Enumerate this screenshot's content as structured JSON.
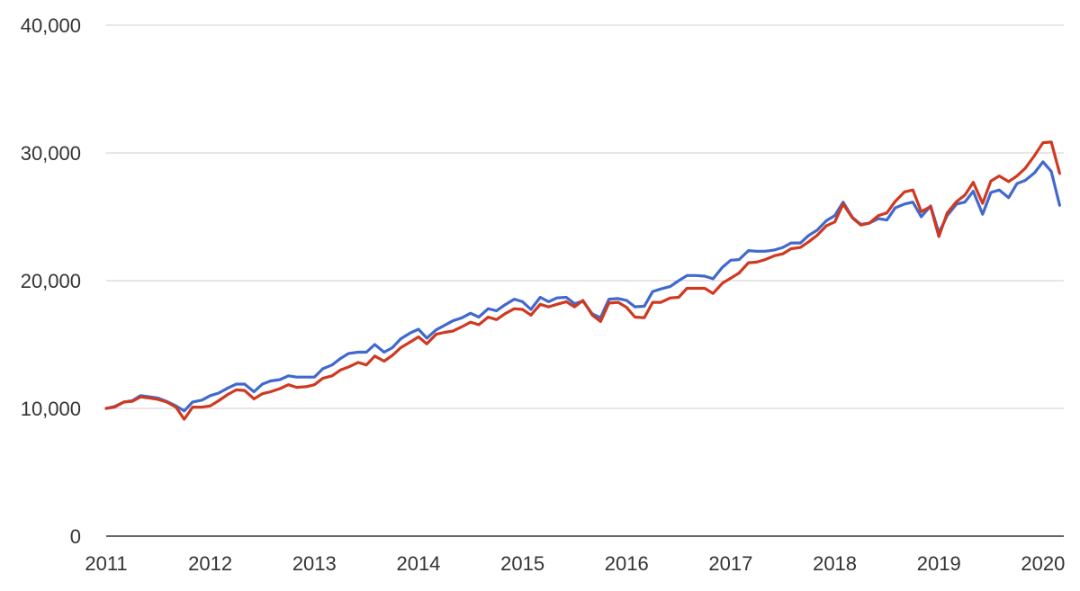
{
  "chart_data": {
    "type": "line",
    "title": "",
    "xlabel": "",
    "ylabel": "",
    "xlim": [
      2011.0,
      2020.2
    ],
    "ylim": [
      0,
      40000
    ],
    "grid": true,
    "legend": "none",
    "x_ticks": [
      {
        "value": 2011,
        "label": "2011"
      },
      {
        "value": 2012,
        "label": "2012"
      },
      {
        "value": 2013,
        "label": "2013"
      },
      {
        "value": 2014,
        "label": "2014"
      },
      {
        "value": 2015,
        "label": "2015"
      },
      {
        "value": 2016,
        "label": "2016"
      },
      {
        "value": 2017,
        "label": "2017"
      },
      {
        "value": 2018,
        "label": "2018"
      },
      {
        "value": 2019,
        "label": "2019"
      },
      {
        "value": 2020,
        "label": "2020"
      }
    ],
    "y_ticks": [
      {
        "value": 0,
        "label": "0"
      },
      {
        "value": 10000,
        "label": "10,000"
      },
      {
        "value": 20000,
        "label": "20,000"
      },
      {
        "value": 30000,
        "label": "30,000"
      },
      {
        "value": 40000,
        "label": "40,000"
      }
    ],
    "series": [
      {
        "color": "#4169cd",
        "points": [
          [
            2011.0,
            10000
          ],
          [
            2011.08,
            10150
          ],
          [
            2011.17,
            10500
          ],
          [
            2011.25,
            10600
          ],
          [
            2011.33,
            11000
          ],
          [
            2011.42,
            10900
          ],
          [
            2011.5,
            10800
          ],
          [
            2011.58,
            10550
          ],
          [
            2011.67,
            10200
          ],
          [
            2011.75,
            9800
          ],
          [
            2011.83,
            10500
          ],
          [
            2011.92,
            10650
          ],
          [
            2012.0,
            11000
          ],
          [
            2012.08,
            11200
          ],
          [
            2012.17,
            11600
          ],
          [
            2012.25,
            11900
          ],
          [
            2012.33,
            11900
          ],
          [
            2012.42,
            11300
          ],
          [
            2012.5,
            11900
          ],
          [
            2012.58,
            12150
          ],
          [
            2012.67,
            12250
          ],
          [
            2012.75,
            12550
          ],
          [
            2012.83,
            12450
          ],
          [
            2012.92,
            12450
          ],
          [
            2013.0,
            12450
          ],
          [
            2013.08,
            13100
          ],
          [
            2013.17,
            13400
          ],
          [
            2013.25,
            13900
          ],
          [
            2013.33,
            14300
          ],
          [
            2013.42,
            14400
          ],
          [
            2013.5,
            14400
          ],
          [
            2013.58,
            15000
          ],
          [
            2013.67,
            14400
          ],
          [
            2013.75,
            14750
          ],
          [
            2013.83,
            15450
          ],
          [
            2013.92,
            15900
          ],
          [
            2014.0,
            16200
          ],
          [
            2014.08,
            15500
          ],
          [
            2014.17,
            16150
          ],
          [
            2014.25,
            16500
          ],
          [
            2014.33,
            16850
          ],
          [
            2014.42,
            17100
          ],
          [
            2014.5,
            17450
          ],
          [
            2014.58,
            17150
          ],
          [
            2014.67,
            17800
          ],
          [
            2014.75,
            17650
          ],
          [
            2014.83,
            18100
          ],
          [
            2014.92,
            18550
          ],
          [
            2015.0,
            18350
          ],
          [
            2015.08,
            17750
          ],
          [
            2015.17,
            18700
          ],
          [
            2015.25,
            18350
          ],
          [
            2015.33,
            18650
          ],
          [
            2015.42,
            18700
          ],
          [
            2015.5,
            18200
          ],
          [
            2015.58,
            18400
          ],
          [
            2015.67,
            17400
          ],
          [
            2015.75,
            17100
          ],
          [
            2015.83,
            18550
          ],
          [
            2015.92,
            18600
          ],
          [
            2016.0,
            18450
          ],
          [
            2016.08,
            17950
          ],
          [
            2016.17,
            18000
          ],
          [
            2016.25,
            19150
          ],
          [
            2016.33,
            19350
          ],
          [
            2016.42,
            19550
          ],
          [
            2016.5,
            20000
          ],
          [
            2016.58,
            20400
          ],
          [
            2016.67,
            20400
          ],
          [
            2016.75,
            20350
          ],
          [
            2016.83,
            20150
          ],
          [
            2016.92,
            21050
          ],
          [
            2017.0,
            21600
          ],
          [
            2017.08,
            21650
          ],
          [
            2017.17,
            22350
          ],
          [
            2017.25,
            22300
          ],
          [
            2017.33,
            22300
          ],
          [
            2017.42,
            22400
          ],
          [
            2017.5,
            22600
          ],
          [
            2017.58,
            22950
          ],
          [
            2017.67,
            22950
          ],
          [
            2017.75,
            23550
          ],
          [
            2017.83,
            23950
          ],
          [
            2017.92,
            24700
          ],
          [
            2018.0,
            25100
          ],
          [
            2018.08,
            26150
          ],
          [
            2018.17,
            24950
          ],
          [
            2018.25,
            24400
          ],
          [
            2018.33,
            24500
          ],
          [
            2018.42,
            24850
          ],
          [
            2018.5,
            24750
          ],
          [
            2018.58,
            25700
          ],
          [
            2018.67,
            26000
          ],
          [
            2018.75,
            26150
          ],
          [
            2018.83,
            25000
          ],
          [
            2018.92,
            25850
          ],
          [
            2019.0,
            23750
          ],
          [
            2019.08,
            25100
          ],
          [
            2019.17,
            26000
          ],
          [
            2019.25,
            26150
          ],
          [
            2019.33,
            27000
          ],
          [
            2019.42,
            25200
          ],
          [
            2019.5,
            26900
          ],
          [
            2019.58,
            27100
          ],
          [
            2019.67,
            26500
          ],
          [
            2019.75,
            27600
          ],
          [
            2019.83,
            27850
          ],
          [
            2019.92,
            28450
          ],
          [
            2020.0,
            29300
          ],
          [
            2020.08,
            28550
          ],
          [
            2020.16,
            25900
          ]
        ]
      },
      {
        "color": "#d0391f",
        "points": [
          [
            2011.0,
            10000
          ],
          [
            2011.08,
            10100
          ],
          [
            2011.17,
            10500
          ],
          [
            2011.25,
            10550
          ],
          [
            2011.33,
            10900
          ],
          [
            2011.42,
            10800
          ],
          [
            2011.5,
            10700
          ],
          [
            2011.58,
            10500
          ],
          [
            2011.67,
            10100
          ],
          [
            2011.75,
            9150
          ],
          [
            2011.83,
            10100
          ],
          [
            2011.92,
            10100
          ],
          [
            2012.0,
            10200
          ],
          [
            2012.08,
            10600
          ],
          [
            2012.17,
            11100
          ],
          [
            2012.25,
            11450
          ],
          [
            2012.33,
            11400
          ],
          [
            2012.42,
            10750
          ],
          [
            2012.5,
            11150
          ],
          [
            2012.58,
            11300
          ],
          [
            2012.67,
            11550
          ],
          [
            2012.75,
            11850
          ],
          [
            2012.83,
            11650
          ],
          [
            2012.92,
            11700
          ],
          [
            2013.0,
            11850
          ],
          [
            2013.08,
            12350
          ],
          [
            2013.17,
            12550
          ],
          [
            2013.25,
            13000
          ],
          [
            2013.33,
            13250
          ],
          [
            2013.42,
            13600
          ],
          [
            2013.5,
            13400
          ],
          [
            2013.58,
            14100
          ],
          [
            2013.67,
            13700
          ],
          [
            2013.75,
            14150
          ],
          [
            2013.83,
            14750
          ],
          [
            2013.92,
            15200
          ],
          [
            2014.0,
            15600
          ],
          [
            2014.08,
            15050
          ],
          [
            2014.17,
            15800
          ],
          [
            2014.25,
            15950
          ],
          [
            2014.33,
            16050
          ],
          [
            2014.42,
            16400
          ],
          [
            2014.5,
            16750
          ],
          [
            2014.58,
            16550
          ],
          [
            2014.67,
            17150
          ],
          [
            2014.75,
            16950
          ],
          [
            2014.83,
            17400
          ],
          [
            2014.92,
            17800
          ],
          [
            2015.0,
            17750
          ],
          [
            2015.08,
            17300
          ],
          [
            2015.17,
            18150
          ],
          [
            2015.25,
            17950
          ],
          [
            2015.33,
            18150
          ],
          [
            2015.42,
            18350
          ],
          [
            2015.5,
            17950
          ],
          [
            2015.58,
            18450
          ],
          [
            2015.67,
            17300
          ],
          [
            2015.75,
            16800
          ],
          [
            2015.83,
            18250
          ],
          [
            2015.92,
            18300
          ],
          [
            2016.0,
            17900
          ],
          [
            2016.08,
            17150
          ],
          [
            2016.17,
            17100
          ],
          [
            2016.25,
            18300
          ],
          [
            2016.33,
            18300
          ],
          [
            2016.42,
            18650
          ],
          [
            2016.5,
            18700
          ],
          [
            2016.58,
            19400
          ],
          [
            2016.67,
            19400
          ],
          [
            2016.75,
            19400
          ],
          [
            2016.83,
            19000
          ],
          [
            2016.92,
            19800
          ],
          [
            2017.0,
            20200
          ],
          [
            2017.08,
            20600
          ],
          [
            2017.17,
            21400
          ],
          [
            2017.25,
            21450
          ],
          [
            2017.33,
            21650
          ],
          [
            2017.42,
            21950
          ],
          [
            2017.5,
            22100
          ],
          [
            2017.58,
            22500
          ],
          [
            2017.67,
            22600
          ],
          [
            2017.75,
            23050
          ],
          [
            2017.83,
            23550
          ],
          [
            2017.92,
            24300
          ],
          [
            2018.0,
            24600
          ],
          [
            2018.08,
            26000
          ],
          [
            2018.17,
            24900
          ],
          [
            2018.25,
            24350
          ],
          [
            2018.33,
            24500
          ],
          [
            2018.42,
            25100
          ],
          [
            2018.5,
            25300
          ],
          [
            2018.58,
            26200
          ],
          [
            2018.67,
            26950
          ],
          [
            2018.75,
            27100
          ],
          [
            2018.83,
            25400
          ],
          [
            2018.92,
            25800
          ],
          [
            2019.0,
            23450
          ],
          [
            2019.08,
            25300
          ],
          [
            2019.17,
            26200
          ],
          [
            2019.25,
            26700
          ],
          [
            2019.33,
            27700
          ],
          [
            2019.42,
            26050
          ],
          [
            2019.5,
            27800
          ],
          [
            2019.58,
            28200
          ],
          [
            2019.67,
            27750
          ],
          [
            2019.75,
            28200
          ],
          [
            2019.83,
            28800
          ],
          [
            2019.92,
            29800
          ],
          [
            2020.0,
            30800
          ],
          [
            2020.08,
            30850
          ],
          [
            2020.16,
            28400
          ]
        ]
      }
    ]
  }
}
